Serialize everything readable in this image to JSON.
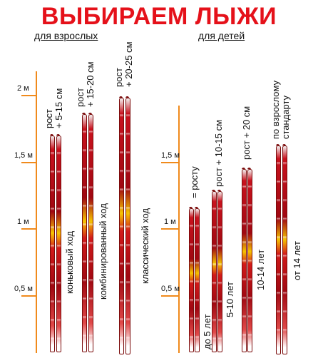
{
  "title": "ВЫБИРАЕМ ЛЫЖИ",
  "adults": {
    "subtitle": "для взрослых",
    "scale": [
      "2 м",
      "1,5 м",
      "1 м",
      "0,5 м"
    ],
    "groups": [
      {
        "label": "рост\n+ 5-15 см",
        "style": "коньковый ход"
      },
      {
        "label": "рост\n+ 15-20 см",
        "style": "комбинированный ход"
      },
      {
        "label": "рост\n+ 20-25 см",
        "style": "классический ход"
      }
    ]
  },
  "kids": {
    "subtitle": "для детей",
    "scale": [
      "1,5 м",
      "1 м",
      "0,5 м"
    ],
    "groups": [
      {
        "label": "= росту",
        "age": "до 5 лет"
      },
      {
        "label": "рост + 10-15 см",
        "age": "5-10 лет"
      },
      {
        "label": "рост + 20 см",
        "age": "10-14 лет"
      },
      {
        "label": "по взрослому\nстандарту",
        "age": "от 14 лет"
      }
    ]
  },
  "colors": {
    "title": "#e5111a",
    "scale": "#f08a1c",
    "ski": "#b30d18",
    "binding": "#f5c400"
  }
}
